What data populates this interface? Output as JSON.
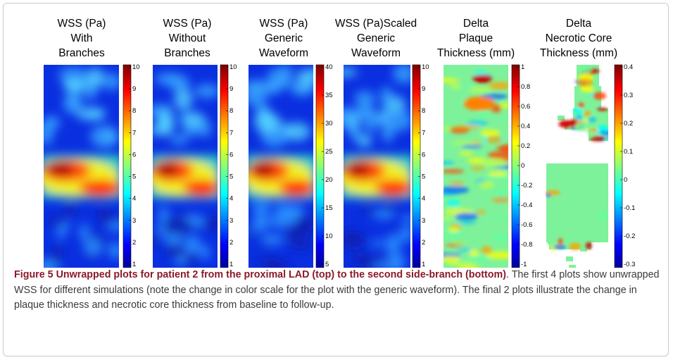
{
  "figure": {
    "panels": [
      {
        "title_lines": [
          "WSS (Pa)",
          "With",
          "Branches"
        ],
        "ticks": [
          "10",
          "9",
          "8",
          "7",
          "6",
          "5",
          "4",
          "3",
          "2",
          "1"
        ],
        "map": "wss",
        "colormap": "jet"
      },
      {
        "title_lines": [
          "WSS (Pa)",
          "Without",
          "Branches"
        ],
        "ticks": [
          "10",
          "9",
          "8",
          "7",
          "6",
          "5",
          "4",
          "3",
          "2",
          "1"
        ],
        "map": "wss",
        "colormap": "jet"
      },
      {
        "title_lines": [
          "WSS (Pa)",
          "Generic",
          "Waveform"
        ],
        "ticks": [
          "40",
          "35",
          "30",
          "25",
          "20",
          "15",
          "10",
          "5"
        ],
        "map": "wss",
        "colormap": "jet"
      },
      {
        "title_lines": [
          "WSS (Pa)Scaled",
          "Generic",
          "Waveform"
        ],
        "ticks": [
          "10",
          "9",
          "8",
          "7",
          "6",
          "5",
          "4",
          "3",
          "2",
          "1"
        ],
        "map": "wss",
        "colormap": "jet"
      },
      {
        "title_lines": [
          "Delta",
          "Plaque",
          "Thickness (mm)"
        ],
        "ticks": [
          "1",
          "0.8",
          "0.6",
          "0.4",
          "0.2",
          "0",
          "-0.2",
          "-0.4",
          "-0.6",
          "-0.8",
          "-1"
        ],
        "map": "plaque",
        "colormap": "jet"
      },
      {
        "title_lines": [
          "Delta",
          "Necrotic Core",
          "Thickness (mm)"
        ],
        "ticks": [
          "0.4",
          "0.3",
          "0.2",
          "0.1",
          "0",
          "-0.1",
          "-0.2",
          "-0.3"
        ],
        "map": "core",
        "colormap": "jet"
      }
    ]
  },
  "caption": {
    "label": "Figure 5",
    "title": "Unwrapped plots for patient 2 from the proximal LAD (top) to the second side-branch (bottom)",
    "text": ". The first 4 plots show unwrapped WSS for different simulations (note the change in color scale for the plot with the generic waveform). The final 2 plots illustrate the change in plaque thickness and necrotic core thickness from baseline to follow-up."
  }
}
